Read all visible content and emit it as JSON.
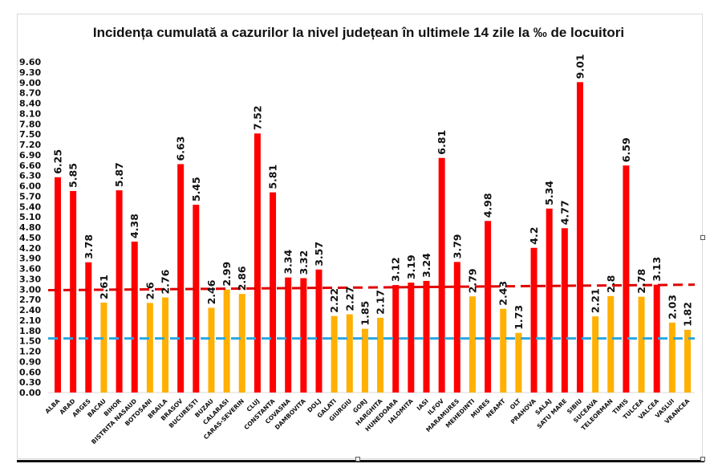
{
  "chart_data": {
    "type": "bar",
    "title": "Incidența cumulată a cazurilor la nivel județean în ultimele 14 zile la ‰ de locuitori",
    "xlabel": "",
    "ylabel": "",
    "ylim": [
      0,
      9.6
    ],
    "yticks": [
      "0.00",
      "0.30",
      "0.60",
      "0.90",
      "1.20",
      "1.50",
      "1.80",
      "2.10",
      "2.40",
      "2.70",
      "3.00",
      "3.30",
      "3.60",
      "3.90",
      "4.20",
      "4.50",
      "4.80",
      "5.10",
      "5.40",
      "5.70",
      "6.00",
      "6.30",
      "6.60",
      "6.90",
      "7.20",
      "7.50",
      "7.80",
      "8.10",
      "8.40",
      "8.70",
      "9.00",
      "9.30",
      "9.60"
    ],
    "grid": false,
    "legend": "none",
    "colors": {
      "above_threshold": "#ff0000",
      "below_threshold": "#ffb000",
      "red_line": "#e00000",
      "blue_line": "#2aa7e0"
    },
    "categories": [
      "ALBA",
      "ARAD",
      "ARGES",
      "BACAU",
      "BIHOR",
      "BISTRITA NASAUD",
      "BOTOSANI",
      "BRAILA",
      "BRASOV",
      "BUCURESTI",
      "BUZAU",
      "CALARASI",
      "CARAS-SEVERIN",
      "CLUJ",
      "CONSTANTA",
      "COVASNA",
      "DAMBOVITA",
      "DOLJ",
      "GALATI",
      "GIURGIU",
      "GORJ",
      "HARGHITA",
      "HUNEDOARA",
      "IALOMITA",
      "IASI",
      "ILFOV",
      "MARAMURES",
      "MEHEDINTI",
      "MURES",
      "NEAMT",
      "OLT",
      "PRAHOVA",
      "SALAJ",
      "SATU MARE",
      "SIBIU",
      "SUCEAVA",
      "TELEORMAN",
      "TIMIS",
      "TULCEA",
      "VALCEA",
      "VASLUI",
      "VRANCEA"
    ],
    "values": [
      6.25,
      5.85,
      3.78,
      2.61,
      5.87,
      4.38,
      2.6,
      2.76,
      6.63,
      5.45,
      2.46,
      2.99,
      2.86,
      7.52,
      5.81,
      3.34,
      3.32,
      3.57,
      2.22,
      2.27,
      1.85,
      2.17,
      3.12,
      3.19,
      3.24,
      6.81,
      3.79,
      2.79,
      4.98,
      2.43,
      1.73,
      4.2,
      5.34,
      4.77,
      9.01,
      2.21,
      2.8,
      6.59,
      2.78,
      3.13,
      2.03,
      1.82
    ],
    "value_labels": [
      "6.25",
      "5.85",
      "3.78",
      "2.61",
      "5.87",
      "4.38",
      "2.6",
      "2.76",
      "6.63",
      "5.45",
      "2.46",
      "2.99",
      "2.86",
      "7.52",
      "5.81",
      "3.34",
      "3.32",
      "3.57",
      "2.22",
      "2.27",
      "1.85",
      "2.17",
      "3.12",
      "3.19",
      "3.24",
      "6.81",
      "3.79",
      "2.79",
      "4.98",
      "2.43",
      "1.73",
      "4.2",
      "5.34",
      "4.77",
      "9.01",
      "2.21",
      "2.8",
      "6.59",
      "2.78",
      "3.13",
      "2.03",
      "1.82"
    ],
    "bar_colors": [
      "red",
      "red",
      "red",
      "yellow",
      "red",
      "red",
      "yellow",
      "yellow",
      "red",
      "red",
      "yellow",
      "yellow",
      "yellow",
      "red",
      "red",
      "red",
      "red",
      "red",
      "yellow",
      "yellow",
      "yellow",
      "yellow",
      "red",
      "red",
      "red",
      "red",
      "red",
      "yellow",
      "red",
      "yellow",
      "yellow",
      "red",
      "red",
      "red",
      "red",
      "yellow",
      "yellow",
      "red",
      "yellow",
      "red",
      "yellow",
      "yellow"
    ],
    "reference_lines": [
      {
        "name": "red-threshold-line",
        "style": "dashed",
        "color": "red",
        "y_start": 2.97,
        "y_end": 3.13
      },
      {
        "name": "blue-threshold-line",
        "style": "dashed",
        "color": "blue",
        "y_start": 1.57,
        "y_end": 1.57
      }
    ]
  }
}
